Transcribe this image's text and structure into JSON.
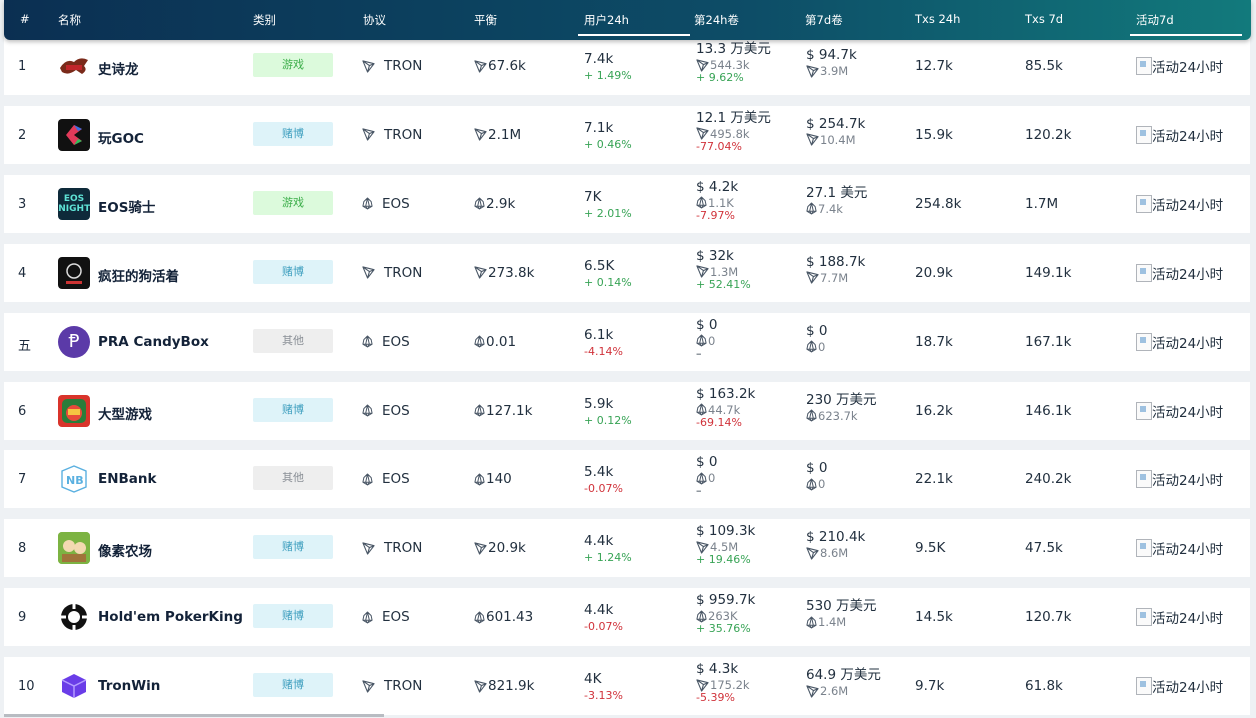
{
  "header": {
    "rank": "#",
    "name": "名称",
    "category": "类别",
    "protocol": "协议",
    "balance": "平衡",
    "users_24h": "用户24h",
    "vol_24h": "第24h卷",
    "vol_7d": "第7d卷",
    "txs_24h": "Txs 24h",
    "txs_7d": "Txs 7d",
    "activity_7d": "活动7d"
  },
  "rows": [
    {
      "rank": "1",
      "name": "史诗龙",
      "logo": "dragon-logo",
      "category": "游戏",
      "cat_type": "game",
      "protocol": "TRON",
      "balance": "67.6k",
      "users": "7.4k",
      "users_change": "+ 1.49%",
      "users_dir": "pos",
      "v24_main": "13.3 万美元",
      "v24_sub": "544.3k",
      "v24_change": "+ 9.62%",
      "v24_dir": "pos",
      "v7_main": "$ 94.7k",
      "v7_sub": "3.9M",
      "v7_change": "",
      "v7_dir": "",
      "tx24": "12.7k",
      "tx7": "85.5k",
      "activity": "活动24小时"
    },
    {
      "rank": "2",
      "name": "玩GOC",
      "logo": "goc-logo",
      "category": "赌博",
      "cat_type": "gamble",
      "protocol": "TRON",
      "balance": "2.1M",
      "users": "7.1k",
      "users_change": "+ 0.46%",
      "users_dir": "pos",
      "v24_main": "12.1 万美元",
      "v24_sub": "495.8k",
      "v24_change": "-77.04%",
      "v24_dir": "neg",
      "v7_main": "$ 254.7k",
      "v7_sub": "10.4M",
      "v7_change": "",
      "v7_dir": "",
      "tx24": "15.9k",
      "tx7": "120.2k",
      "activity": "活动24小时"
    },
    {
      "rank": "3",
      "name": "EOS骑士",
      "logo": "eos-knights-logo",
      "category": "游戏",
      "cat_type": "game",
      "protocol": "EOS",
      "balance": "2.9k",
      "users": "7K",
      "users_change": "+ 2.01%",
      "users_dir": "pos",
      "v24_main": "$ 4.2k",
      "v24_sub": "1.1K",
      "v24_change": "-7.97%",
      "v24_dir": "neg",
      "v7_main": "27.1 美元",
      "v7_sub": "7.4k",
      "v7_change": "",
      "v7_dir": "",
      "tx24": "254.8k",
      "tx7": "1.7M",
      "activity": "活动24小时"
    },
    {
      "rank": "4",
      "name": "疯狂的狗活着",
      "logo": "crazy-dog-logo",
      "category": "赌博",
      "cat_type": "gamble",
      "protocol": "TRON",
      "balance": "273.8k",
      "users": "6.5K",
      "users_change": "+ 0.14%",
      "users_dir": "pos",
      "v24_main": "$ 32k",
      "v24_sub": "1.3M",
      "v24_change": "+ 52.41%",
      "v24_dir": "pos",
      "v7_main": "$ 188.7k",
      "v7_sub": "7.7M",
      "v7_change": "",
      "v7_dir": "",
      "tx24": "20.9k",
      "tx7": "149.1k",
      "activity": "活动24小时"
    },
    {
      "rank": "五",
      "name": "PRA CandyBox",
      "logo": "pra-candybox-logo",
      "category": "其他",
      "cat_type": "other",
      "protocol": "EOS",
      "balance": "0.01",
      "users": "6.1k",
      "users_change": "-4.14%",
      "users_dir": "neg",
      "v24_main": "$ 0",
      "v24_sub": "0",
      "v24_change": "–",
      "v24_dir": "",
      "v7_main": "$ 0",
      "v7_sub": "0",
      "v7_change": "",
      "v7_dir": "",
      "tx24": "18.7k",
      "tx7": "167.1k",
      "activity": "活动24小时"
    },
    {
      "rank": "6",
      "name": "大型游戏",
      "logo": "big-game-logo",
      "category": "赌博",
      "cat_type": "gamble",
      "protocol": "EOS",
      "balance": "127.1k",
      "users": "5.9k",
      "users_change": "+ 0.12%",
      "users_dir": "pos",
      "v24_main": "$ 163.2k",
      "v24_sub": "44.7k",
      "v24_change": "-69.14%",
      "v24_dir": "neg",
      "v7_main": "230 万美元",
      "v7_sub": "623.7k",
      "v7_change": "",
      "v7_dir": "",
      "tx24": "16.2k",
      "tx7": "146.1k",
      "activity": "活动24小时"
    },
    {
      "rank": "7",
      "name": "ENBank",
      "logo": "enbank-logo",
      "category": "其他",
      "cat_type": "other",
      "protocol": "EOS",
      "balance": "140",
      "users": "5.4k",
      "users_change": "-0.07%",
      "users_dir": "neg",
      "v24_main": "$ 0",
      "v24_sub": "0",
      "v24_change": "–",
      "v24_dir": "",
      "v7_main": "$ 0",
      "v7_sub": "0",
      "v7_change": "",
      "v7_dir": "",
      "tx24": "22.1k",
      "tx7": "240.2k",
      "activity": "活动24小时"
    },
    {
      "rank": "8",
      "name": "像素农场",
      "logo": "pixel-farm-logo",
      "category": "赌博",
      "cat_type": "gamble",
      "protocol": "TRON",
      "balance": "20.9k",
      "users": "4.4k",
      "users_change": "+ 1.24%",
      "users_dir": "pos",
      "v24_main": "$ 109.3k",
      "v24_sub": "4.5M",
      "v24_change": "+ 19.46%",
      "v24_dir": "pos",
      "v7_main": "$ 210.4k",
      "v7_sub": "8.6M",
      "v7_change": "",
      "v7_dir": "",
      "tx24": "9.5K",
      "tx7": "47.5k",
      "activity": "活动24小时"
    },
    {
      "rank": "9",
      "name": "Hold'em PokerKing",
      "logo": "pokerking-logo",
      "category": "赌博",
      "cat_type": "gamble",
      "protocol": "EOS",
      "balance": "601.43",
      "users": "4.4k",
      "users_change": "-0.07%",
      "users_dir": "neg",
      "v24_main": "$ 959.7k",
      "v24_sub": "263K",
      "v24_change": "+ 35.76%",
      "v24_dir": "pos",
      "v7_main": "530 万美元",
      "v7_sub": "1.4M",
      "v7_change": "",
      "v7_dir": "",
      "tx24": "14.5k",
      "tx7": "120.7k",
      "activity": "活动24小时"
    },
    {
      "rank": "10",
      "name": "TronWin",
      "logo": "tronwin-logo",
      "category": "赌博",
      "cat_type": "gamble",
      "protocol": "TRON",
      "balance": "821.9k",
      "users": "4K",
      "users_change": "-3.13%",
      "users_dir": "neg",
      "v24_main": "$ 4.3k",
      "v24_sub": "175.2k",
      "v24_change": "-5.39%",
      "v24_dir": "neg",
      "v7_main": "64.9 万美元",
      "v7_sub": "2.6M",
      "v7_change": "",
      "v7_dir": "",
      "tx24": "9.7k",
      "tx7": "61.8k",
      "activity": "活动24小时"
    }
  ],
  "colors": {
    "header_start": "#0b2f52",
    "header_end": "#127a7c",
    "positive": "#37a355",
    "negative": "#d0323a"
  }
}
